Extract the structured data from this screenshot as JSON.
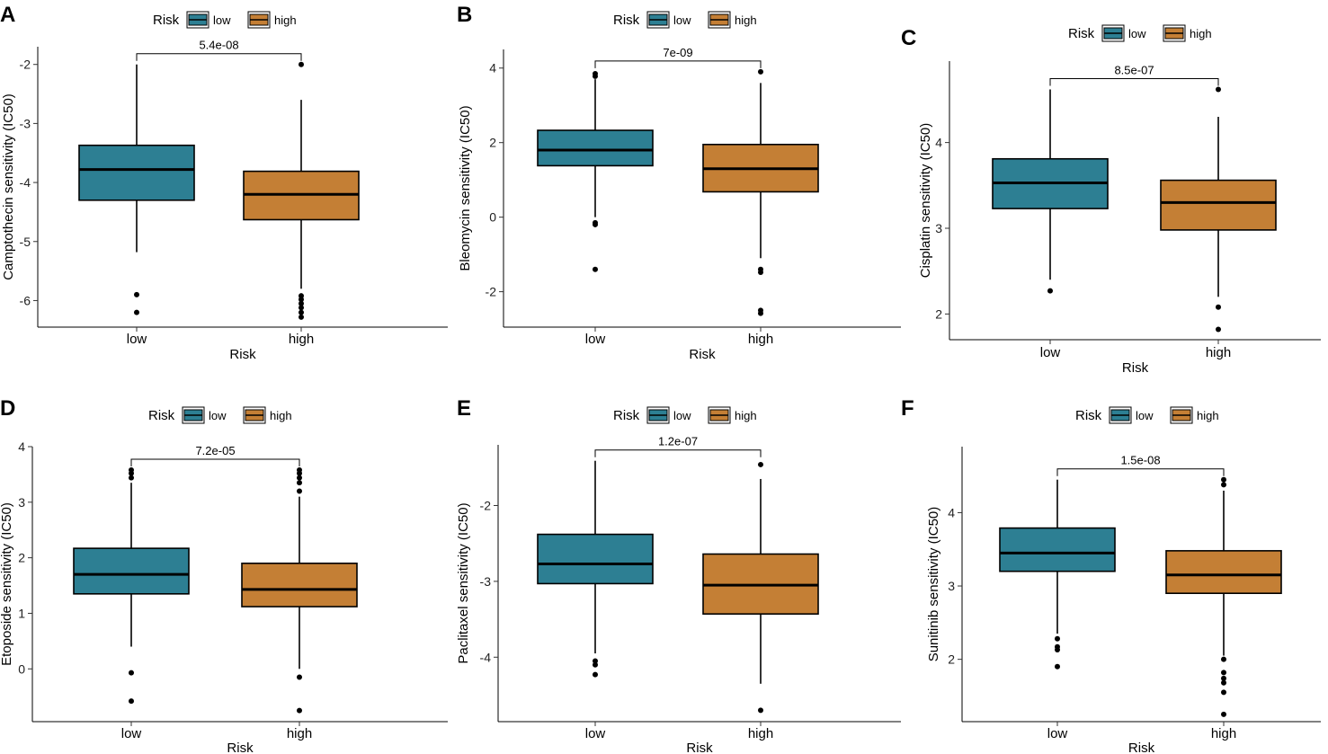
{
  "colors": {
    "low": "#2d7f93",
    "high": "#c47f35",
    "line": "#000000"
  },
  "chart_data": [
    {
      "panel": "A",
      "type": "boxplot",
      "legend": {
        "title": "Risk",
        "items": [
          "low",
          "high"
        ]
      },
      "categories": [
        "low",
        "high"
      ],
      "xlabel": "Risk",
      "ylabel": "Camptothecin sensitivity (IC50)",
      "ylim": [
        -6.45,
        -1.7
      ],
      "yticks": [
        -6,
        -5,
        -4,
        -3,
        -2
      ],
      "pvalue": "5.4e-08",
      "boxes": [
        {
          "name": "low",
          "q1": -4.3,
          "median": -3.78,
          "q3": -3.37,
          "whisker_low": -5.18,
          "whisker_high": -2.0,
          "outliers": [
            -5.9,
            -6.2
          ]
        },
        {
          "name": "high",
          "q1": -4.63,
          "median": -4.2,
          "q3": -3.81,
          "whisker_low": -5.8,
          "whisker_high": -2.6,
          "outliers": [
            -2.0,
            -5.92,
            -5.98,
            -6.05,
            -6.12,
            -6.2,
            -6.28
          ]
        }
      ]
    },
    {
      "panel": "B",
      "type": "boxplot",
      "legend": {
        "title": "Risk",
        "items": [
          "low",
          "high"
        ]
      },
      "categories": [
        "low",
        "high"
      ],
      "xlabel": "Risk",
      "ylabel": "Bleomycin sensitivity (IC50)",
      "ylim": [
        -2.95,
        4.5
      ],
      "yticks": [
        -2,
        0,
        2,
        4
      ],
      "pvalue": "7e-09",
      "boxes": [
        {
          "name": "low",
          "q1": 1.38,
          "median": 1.8,
          "q3": 2.33,
          "whisker_low": 0.0,
          "whisker_high": 3.7,
          "outliers": [
            3.78,
            3.85,
            -0.15,
            -0.2,
            -1.4
          ]
        },
        {
          "name": "high",
          "q1": 0.68,
          "median": 1.3,
          "q3": 1.95,
          "whisker_low": -1.1,
          "whisker_high": 3.6,
          "outliers": [
            3.9,
            -1.4,
            -1.48,
            -2.5,
            -2.58
          ]
        }
      ]
    },
    {
      "panel": "C",
      "type": "boxplot",
      "legend": {
        "title": "Risk",
        "items": [
          "low",
          "high"
        ]
      },
      "categories": [
        "low",
        "high"
      ],
      "xlabel": "Risk",
      "ylabel": "Cisplatin sensitivity (IC50)",
      "ylim": [
        1.7,
        4.95
      ],
      "yticks": [
        2,
        3,
        4
      ],
      "pvalue": "8.5e-07",
      "boxes": [
        {
          "name": "low",
          "q1": 3.23,
          "median": 3.53,
          "q3": 3.81,
          "whisker_low": 2.4,
          "whisker_high": 4.62,
          "outliers": [
            2.27
          ]
        },
        {
          "name": "high",
          "q1": 2.98,
          "median": 3.3,
          "q3": 3.56,
          "whisker_low": 2.2,
          "whisker_high": 4.3,
          "outliers": [
            4.62,
            2.08,
            1.82
          ]
        }
      ]
    },
    {
      "panel": "D",
      "type": "boxplot",
      "legend": {
        "title": "Risk",
        "items": [
          "low",
          "high"
        ]
      },
      "categories": [
        "low",
        "high"
      ],
      "xlabel": "Risk",
      "ylabel": "Etoposide sensitivity (IC50)",
      "ylim": [
        -0.95,
        4.0
      ],
      "yticks": [
        0,
        1,
        2,
        3,
        4
      ],
      "pvalue": "7.2e-05",
      "boxes": [
        {
          "name": "low",
          "q1": 1.35,
          "median": 1.7,
          "q3": 2.17,
          "whisker_low": 0.4,
          "whisker_high": 3.35,
          "outliers": [
            3.58,
            3.52,
            3.44,
            -0.07,
            -0.58
          ]
        },
        {
          "name": "high",
          "q1": 1.12,
          "median": 1.43,
          "q3": 1.9,
          "whisker_low": 0.0,
          "whisker_high": 3.1,
          "outliers": [
            3.58,
            3.52,
            3.44,
            3.35,
            3.2,
            -0.15,
            -0.75
          ]
        }
      ]
    },
    {
      "panel": "E",
      "type": "boxplot",
      "legend": {
        "title": "Risk",
        "items": [
          "low",
          "high"
        ]
      },
      "categories": [
        "low",
        "high"
      ],
      "xlabel": "Risk",
      "ylabel": "Paclitaxel sensitivity (IC50)",
      "ylim": [
        -4.85,
        -1.2
      ],
      "yticks": [
        -4,
        -3,
        -2
      ],
      "pvalue": "1.2e-07",
      "boxes": [
        {
          "name": "low",
          "q1": -3.03,
          "median": -2.77,
          "q3": -2.38,
          "whisker_low": -3.95,
          "whisker_high": -1.41,
          "outliers": [
            -4.05,
            -4.1,
            -4.23
          ]
        },
        {
          "name": "high",
          "q1": -3.43,
          "median": -3.05,
          "q3": -2.64,
          "whisker_low": -4.35,
          "whisker_high": -1.65,
          "outliers": [
            -1.46,
            -4.7
          ]
        }
      ]
    },
    {
      "panel": "F",
      "type": "boxplot",
      "legend": {
        "title": "Risk",
        "items": [
          "low",
          "high"
        ]
      },
      "categories": [
        "low",
        "high"
      ],
      "xlabel": "Risk",
      "ylabel": "Sunitinib sensitivity (IC50)",
      "ylim": [
        1.15,
        4.9
      ],
      "yticks": [
        2,
        3,
        4
      ],
      "pvalue": "1.5e-08",
      "boxes": [
        {
          "name": "low",
          "q1": 3.2,
          "median": 3.45,
          "q3": 3.79,
          "whisker_low": 2.35,
          "whisker_high": 4.45,
          "outliers": [
            2.28,
            2.17,
            2.13,
            1.9
          ]
        },
        {
          "name": "high",
          "q1": 2.9,
          "median": 3.15,
          "q3": 3.48,
          "whisker_low": 2.05,
          "whisker_high": 4.3,
          "outliers": [
            4.45,
            4.38,
            2.0,
            1.82,
            1.74,
            1.68,
            1.55,
            1.25
          ]
        }
      ]
    }
  ]
}
